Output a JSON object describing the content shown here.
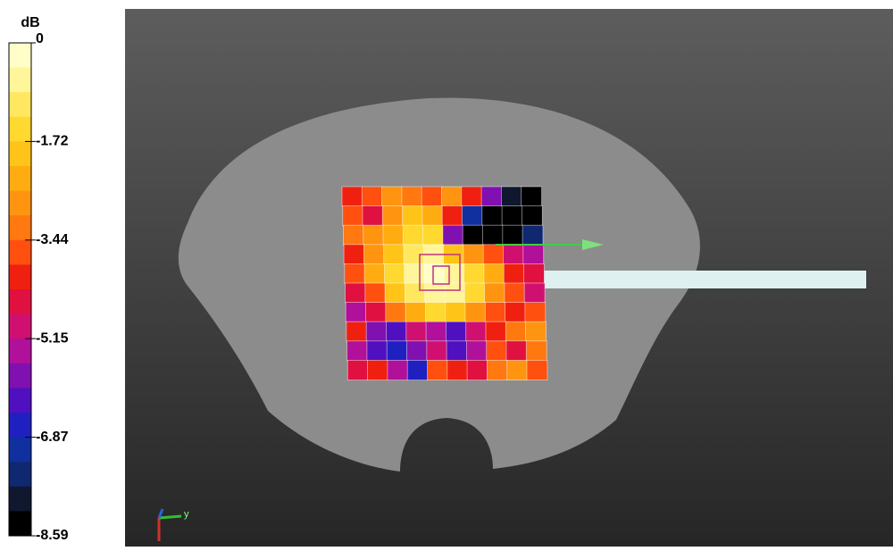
{
  "colorbar": {
    "unit": "dB",
    "ticks": [
      "0",
      "-1.72",
      "-3.44",
      "-5.15",
      "-6.87",
      "-8.59"
    ]
  },
  "viewport": {
    "axis_label": "y"
  }
}
